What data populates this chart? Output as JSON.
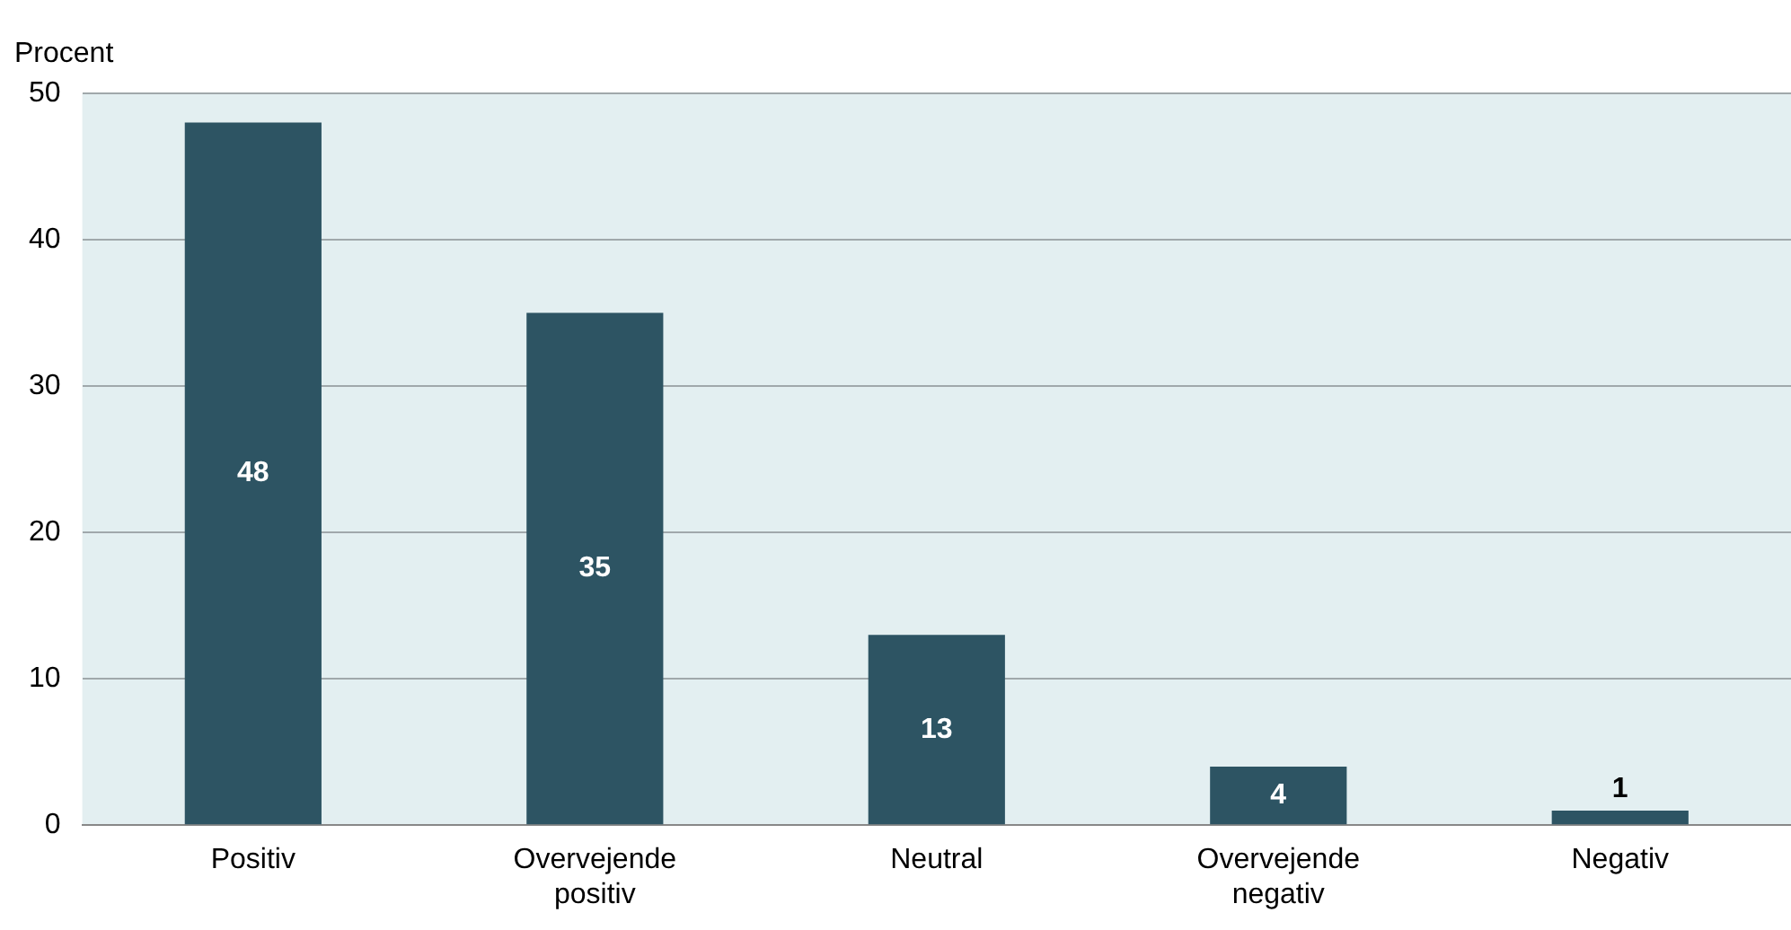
{
  "chart_data": {
    "type": "bar",
    "ylabel": "Procent",
    "categories": [
      "Positiv",
      "Overvejende positiv",
      "Neutral",
      "Overvejende negativ",
      "Negativ"
    ],
    "values": [
      48,
      35,
      13,
      4,
      1
    ],
    "color": "#2d5463",
    "ylim": [
      0,
      50
    ],
    "yticks": [
      0,
      10,
      20,
      30,
      40,
      50
    ],
    "grid": "y",
    "data_labels": true
  }
}
